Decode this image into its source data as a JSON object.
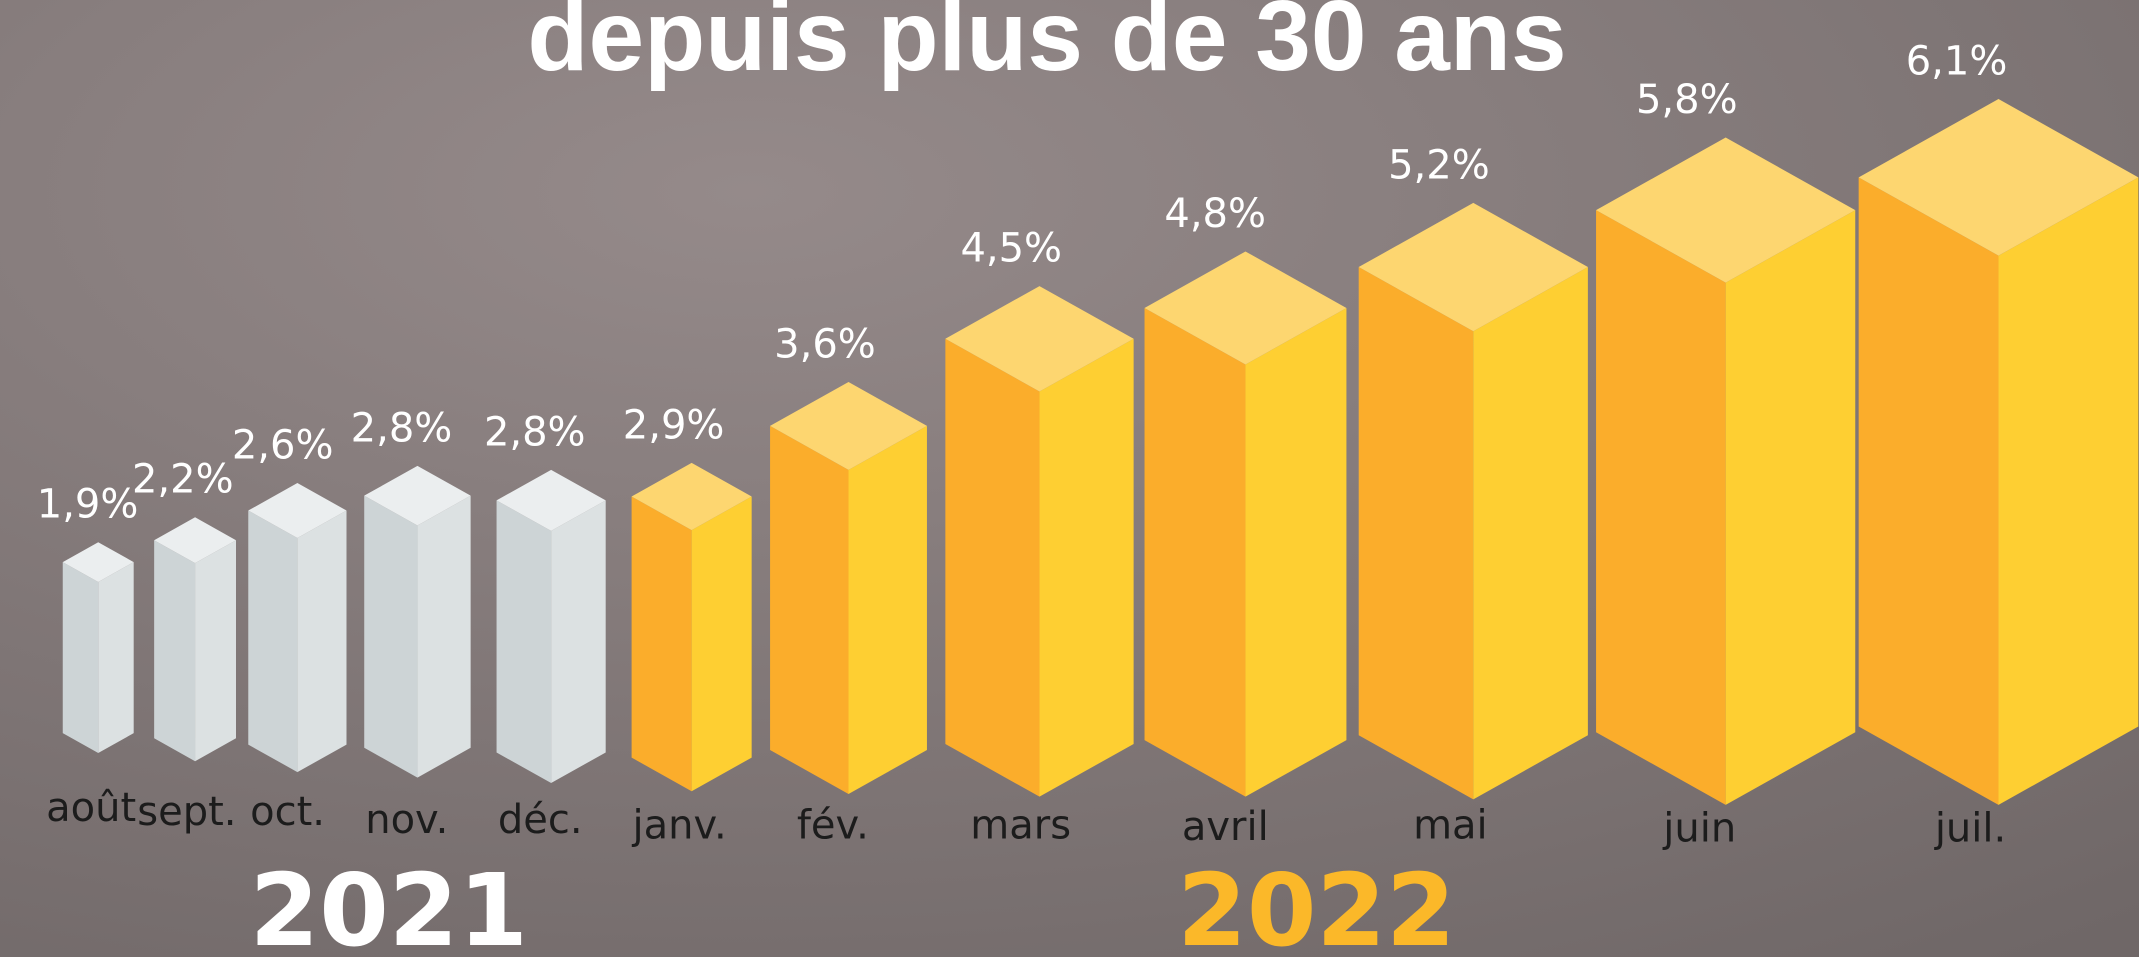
{
  "chart_data": {
    "type": "bar",
    "title": "depuis plus de 30 ans",
    "categories": [
      "août",
      "sept.",
      "oct.",
      "nov.",
      "déc.",
      "janv.",
      "fév.",
      "mars",
      "avril",
      "mai",
      "juin",
      "juil."
    ],
    "values": [
      1.9,
      2.2,
      2.6,
      2.8,
      2.8,
      2.9,
      3.6,
      4.5,
      4.8,
      5.2,
      5.8,
      6.1
    ],
    "value_labels": [
      "1,9%",
      "2,2%",
      "2,6%",
      "2,8%",
      "2,8%",
      "2,9%",
      "3,6%",
      "4,5%",
      "4,8%",
      "5,2%",
      "5,8%",
      "6,1%"
    ],
    "colors": [
      "#cdd4d6",
      "#cdd4d6",
      "#cdd4d6",
      "#cdd4d6",
      "#cdd4d6",
      "#fbad2b",
      "#fbad2b",
      "#fbad2b",
      "#fbad2b",
      "#fbad2b",
      "#fbad2b",
      "#fbad2b"
    ],
    "annotations": [
      {
        "text": "2021",
        "color": "#ffffff"
      },
      {
        "text": "2022",
        "color": "#fbb829"
      }
    ]
  }
}
